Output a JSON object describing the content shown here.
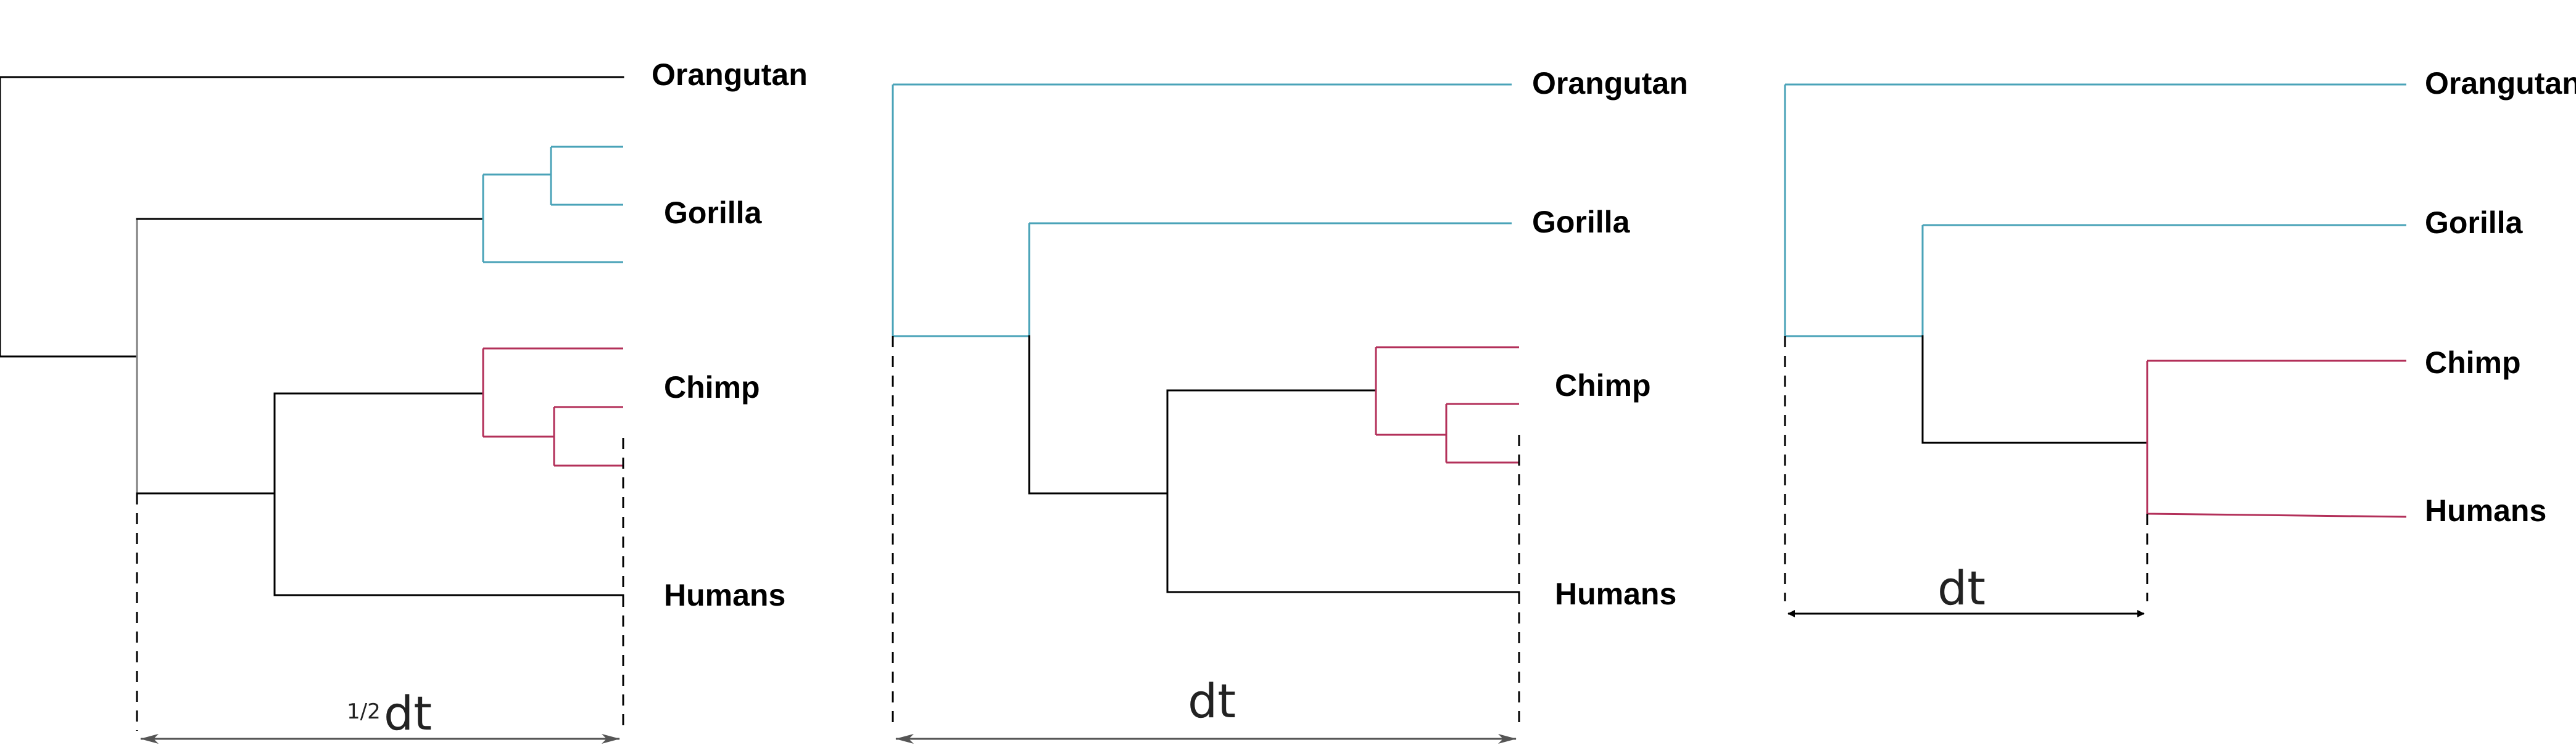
{
  "colors": {
    "black": "#000000",
    "grey": "#7f7f7f",
    "teal": "#4aa3b8",
    "red": "#b3305a",
    "arrow_grey": "#555555"
  },
  "panels": [
    {
      "labels": {
        "orangutan": "Orangutan",
        "gorilla": "Gorilla",
        "chimp": "Chimp",
        "humans": "Humans"
      },
      "scale": {
        "prefix": "1/2",
        "text": "dt"
      }
    },
    {
      "labels": {
        "orangutan": "Orangutan",
        "gorilla": "Gorilla",
        "chimp": "Chimp",
        "humans": "Humans"
      },
      "scale": {
        "prefix": "",
        "text": "dt"
      }
    },
    {
      "labels": {
        "orangutan": "Orangutan",
        "gorilla": "Gorilla",
        "chimp": "Chimp",
        "humans": "Humans"
      },
      "scale": {
        "prefix": "",
        "text": "dt"
      }
    }
  ]
}
